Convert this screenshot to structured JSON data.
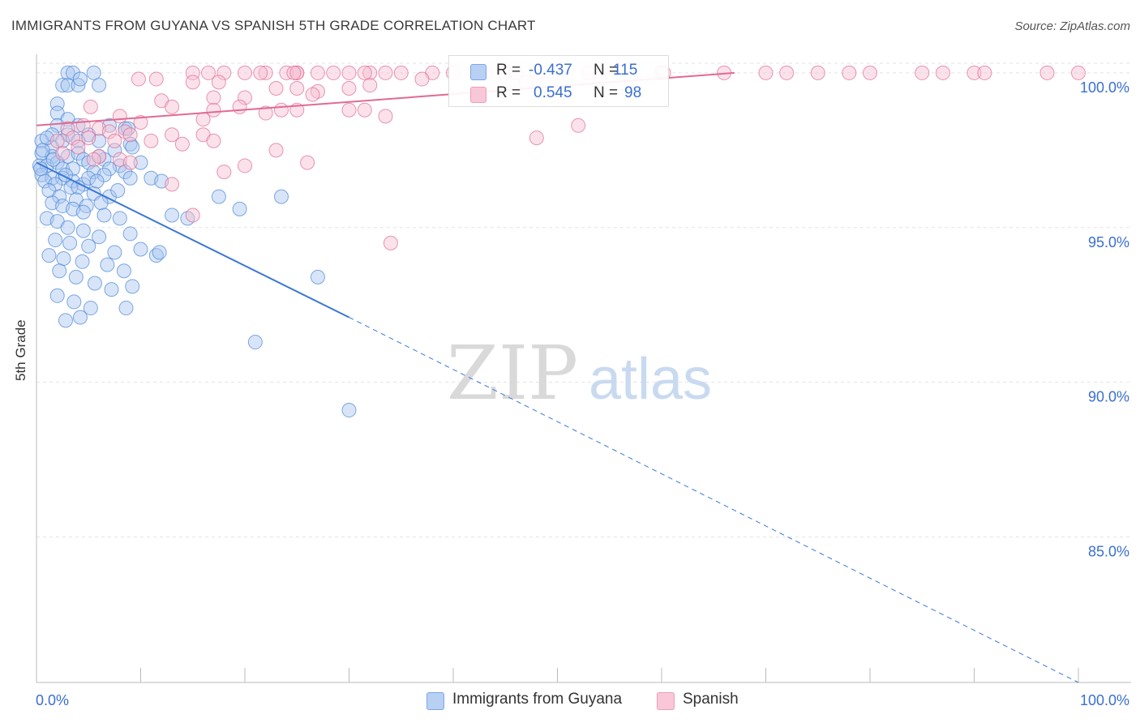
{
  "title": "IMMIGRANTS FROM GUYANA VS SPANISH 5TH GRADE CORRELATION CHART",
  "source": "Source: ZipAtlas.com",
  "watermark": {
    "zip": "ZIP",
    "atlas": "atlas"
  },
  "legend": {
    "rows": [
      {
        "r_label": "R =",
        "r_value": "-0.437",
        "n_label": "N =",
        "n_value": "115",
        "color": "#7aa7e8"
      },
      {
        "r_label": "R =",
        "r_value": "0.545",
        "n_label": "N =",
        "n_value": "98",
        "color": "#f29bb8"
      }
    ]
  },
  "chart_data": {
    "type": "scatter",
    "title": "IMMIGRANTS FROM GUYANA VS SPANISH 5TH GRADE CORRELATION CHART",
    "xlabel": "",
    "ylabel": "5th Grade",
    "xlim": [
      0,
      100
    ],
    "ylim": [
      80.3,
      100.6
    ],
    "x_tick_labels": [
      "0.0%",
      "100.0%"
    ],
    "y_ticks": [
      85,
      90,
      95,
      100
    ],
    "y_tick_labels": [
      "85.0%",
      "90.0%",
      "95.0%",
      "100.0%"
    ],
    "grid": true,
    "legend_position": "top-center",
    "series": [
      {
        "name": "Immigrants from Guyana",
        "color": "#4a86d8",
        "fill": "#a9c6ef",
        "trend": {
          "x0": 0,
          "y0": 97.1,
          "x1": 30,
          "y1": 92.1,
          "dashed_to_x": 100,
          "dashed_to_y": 80.3
        },
        "points": [
          [
            3,
            100
          ],
          [
            3.5,
            100
          ],
          [
            5.5,
            100
          ],
          [
            2.5,
            99.6
          ],
          [
            3,
            99.6
          ],
          [
            4,
            99.6
          ],
          [
            6,
            99.6
          ],
          [
            4.2,
            99.8
          ],
          [
            2,
            99
          ],
          [
            2,
            98.7
          ],
          [
            3,
            98.5
          ],
          [
            2,
            98.3
          ],
          [
            4,
            98.3
          ],
          [
            7,
            98.3
          ],
          [
            8.5,
            98.2
          ],
          [
            1.5,
            98
          ],
          [
            3,
            98
          ],
          [
            5,
            98
          ],
          [
            0.5,
            97.8
          ],
          [
            1.5,
            97.6
          ],
          [
            2.5,
            97.8
          ],
          [
            4,
            97.8
          ],
          [
            6,
            97.8
          ],
          [
            7.5,
            97.5
          ],
          [
            9,
            97.7
          ],
          [
            0.5,
            97.4
          ],
          [
            1.5,
            97.3
          ],
          [
            3,
            97.3
          ],
          [
            4,
            97.4
          ],
          [
            4.5,
            97.2
          ],
          [
            5,
            97.1
          ],
          [
            6.5,
            97.2
          ],
          [
            8,
            97
          ],
          [
            10,
            97.1
          ],
          [
            0.3,
            97
          ],
          [
            1,
            97
          ],
          [
            2,
            97.1
          ],
          [
            2.5,
            96.9
          ],
          [
            3.5,
            96.9
          ],
          [
            5.5,
            96.8
          ],
          [
            7,
            96.9
          ],
          [
            8.5,
            96.8
          ],
          [
            0.5,
            96.7
          ],
          [
            1.5,
            96.6
          ],
          [
            2.5,
            96.6
          ],
          [
            3.5,
            96.5
          ],
          [
            4.5,
            96.4
          ],
          [
            5,
            96.6
          ],
          [
            6.5,
            96.7
          ],
          [
            9,
            96.6
          ],
          [
            0.8,
            96.5
          ],
          [
            1.8,
            96.4
          ],
          [
            3.3,
            96.3
          ],
          [
            4,
            96.3
          ],
          [
            5.5,
            96.1
          ],
          [
            7,
            96
          ],
          [
            11,
            96.6
          ],
          [
            1.2,
            96.2
          ],
          [
            2.2,
            96
          ],
          [
            3.8,
            95.9
          ],
          [
            4.8,
            95.7
          ],
          [
            6.2,
            95.8
          ],
          [
            1.5,
            95.8
          ],
          [
            2.5,
            95.7
          ],
          [
            3.5,
            95.6
          ],
          [
            4.5,
            95.5
          ],
          [
            6.5,
            95.4
          ],
          [
            8,
            95.3
          ],
          [
            1,
            95.3
          ],
          [
            2,
            95.2
          ],
          [
            3,
            95
          ],
          [
            4.5,
            94.9
          ],
          [
            6,
            94.7
          ],
          [
            9,
            94.8
          ],
          [
            1.8,
            94.6
          ],
          [
            3.2,
            94.5
          ],
          [
            5,
            94.4
          ],
          [
            7.5,
            94.2
          ],
          [
            10,
            94.3
          ],
          [
            1.2,
            94.1
          ],
          [
            2.6,
            94
          ],
          [
            4.4,
            93.9
          ],
          [
            6.8,
            93.8
          ],
          [
            8.4,
            93.6
          ],
          [
            2.2,
            93.6
          ],
          [
            3.8,
            93.4
          ],
          [
            5.6,
            93.2
          ],
          [
            7.2,
            93
          ],
          [
            9.2,
            93.1
          ],
          [
            2,
            92.8
          ],
          [
            3.6,
            92.6
          ],
          [
            5.2,
            92.4
          ],
          [
            2.8,
            92
          ],
          [
            4.2,
            92.1
          ],
          [
            8.6,
            92.4
          ],
          [
            17.5,
            96
          ],
          [
            23.5,
            96
          ],
          [
            19.5,
            95.6
          ],
          [
            14.5,
            95.3
          ],
          [
            13,
            95.4
          ],
          [
            11.5,
            94.1
          ],
          [
            11.8,
            94.2
          ],
          [
            27,
            93.4
          ],
          [
            21,
            91.3
          ],
          [
            30,
            89.1
          ],
          [
            8.8,
            98.2
          ],
          [
            9.2,
            97.6
          ],
          [
            6,
            97.3
          ],
          [
            1,
            97.9
          ],
          [
            0.6,
            97.5
          ],
          [
            1.6,
            97.2
          ],
          [
            2.8,
            96.7
          ],
          [
            0.4,
            96.9
          ],
          [
            5.8,
            96.5
          ],
          [
            7.8,
            96.2
          ],
          [
            12,
            96.5
          ]
        ]
      },
      {
        "name": "Spanish",
        "color": "#e06a93",
        "fill": "#f6bfd1",
        "trend": {
          "x0": 0,
          "y0": 98.3,
          "x1": 67,
          "y1": 100
        },
        "points": [
          [
            15,
            100
          ],
          [
            16.5,
            100
          ],
          [
            18,
            100
          ],
          [
            20,
            100
          ],
          [
            22,
            100
          ],
          [
            24,
            100
          ],
          [
            25,
            100
          ],
          [
            27,
            100
          ],
          [
            28.5,
            100
          ],
          [
            30,
            100
          ],
          [
            32,
            100
          ],
          [
            33.5,
            100
          ],
          [
            35,
            100
          ],
          [
            38,
            100
          ],
          [
            40,
            100
          ],
          [
            43,
            100
          ],
          [
            46,
            100
          ],
          [
            48,
            100
          ],
          [
            50,
            100
          ],
          [
            53,
            100
          ],
          [
            66,
            100
          ],
          [
            70,
            100
          ],
          [
            72,
            100
          ],
          [
            75,
            100
          ],
          [
            78,
            100
          ],
          [
            80,
            100
          ],
          [
            85,
            100
          ],
          [
            87,
            100
          ],
          [
            90,
            100
          ],
          [
            91,
            100
          ],
          [
            97,
            100
          ],
          [
            100,
            100
          ],
          [
            25,
            100
          ],
          [
            24.7,
            100
          ],
          [
            9.8,
            99.8
          ],
          [
            11.5,
            99.8
          ],
          [
            15,
            99.7
          ],
          [
            17.5,
            99.7
          ],
          [
            23,
            99.5
          ],
          [
            25,
            99.5
          ],
          [
            27,
            99.4
          ],
          [
            30,
            99.5
          ],
          [
            32,
            99.6
          ],
          [
            37,
            99.8
          ],
          [
            47,
            99.7
          ],
          [
            26.5,
            99.3
          ],
          [
            20,
            99.2
          ],
          [
            17,
            99.2
          ],
          [
            12,
            99.1
          ],
          [
            13,
            98.9
          ],
          [
            17,
            98.8
          ],
          [
            19.5,
            98.9
          ],
          [
            22,
            98.7
          ],
          [
            23.5,
            98.8
          ],
          [
            25,
            98.8
          ],
          [
            30,
            98.8
          ],
          [
            31.5,
            98.8
          ],
          [
            33.5,
            98.6
          ],
          [
            8,
            98.6
          ],
          [
            16,
            98.5
          ],
          [
            10,
            98.4
          ],
          [
            4.5,
            98.3
          ],
          [
            3,
            98.2
          ],
          [
            6,
            98.2
          ],
          [
            7,
            98.1
          ],
          [
            8.5,
            98.1
          ],
          [
            13,
            98
          ],
          [
            16,
            98
          ],
          [
            9,
            98
          ],
          [
            3.5,
            97.9
          ],
          [
            5,
            97.9
          ],
          [
            7.5,
            97.8
          ],
          [
            2,
            97.8
          ],
          [
            4,
            97.6
          ],
          [
            11,
            97.8
          ],
          [
            14,
            97.7
          ],
          [
            17,
            97.8
          ],
          [
            23,
            97.5
          ],
          [
            6,
            97.3
          ],
          [
            8,
            97.2
          ],
          [
            2.5,
            97.4
          ],
          [
            5.5,
            97.2
          ],
          [
            9,
            97.1
          ],
          [
            20,
            97
          ],
          [
            26,
            97.1
          ],
          [
            18,
            96.8
          ],
          [
            13,
            96.4
          ],
          [
            15,
            95.4
          ],
          [
            34,
            94.5
          ],
          [
            48,
            97.9
          ],
          [
            52,
            98.3
          ],
          [
            31.5,
            100
          ],
          [
            21.5,
            100
          ],
          [
            45,
            100
          ],
          [
            54,
            99.8
          ],
          [
            60,
            100
          ],
          [
            60.2,
            100
          ],
          [
            5.2,
            98.9
          ]
        ]
      }
    ]
  },
  "bottom_legend": [
    {
      "label": "Immigrants from Guyana"
    },
    {
      "label": "Spanish"
    }
  ]
}
